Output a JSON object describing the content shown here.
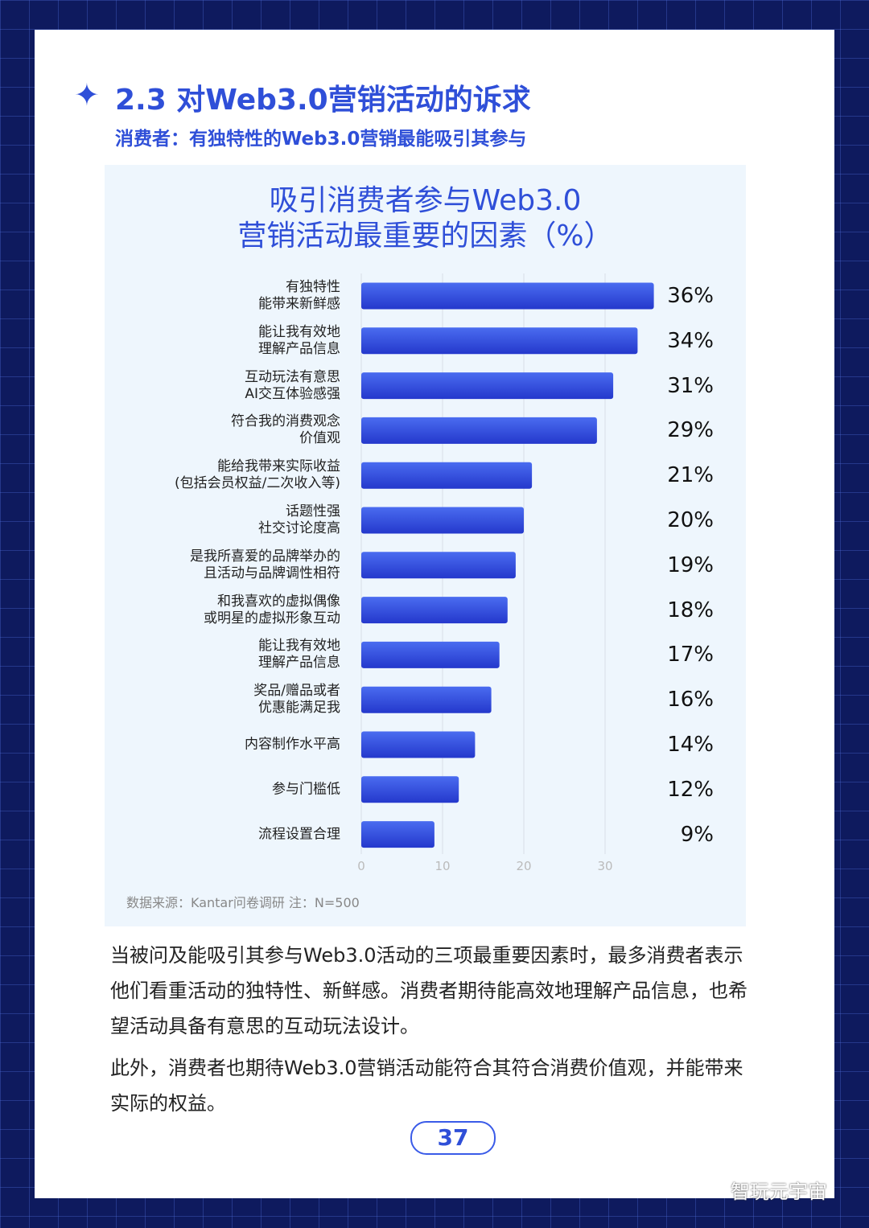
{
  "header": {
    "title": "2.3 对Web3.0营销活动的诉求",
    "subtitle": "消费者：有独特性的Web3.0营销最能吸引其参与"
  },
  "chart_data": {
    "type": "bar",
    "orientation": "horizontal",
    "title": "吸引消费者参与Web3.0\n营销活动最重要的因素（%）",
    "categories": [
      "有独特性\n能带来新鲜感",
      "能让我有效地\n理解产品信息",
      "互动玩法有意思\nAI交互体验感强",
      "符合我的消费观念\n价值观",
      "能给我带来实际收益\n(包括会员权益/二次收入等)",
      "话题性强\n社交讨论度高",
      "是我所喜爱的品牌举办的\n且活动与品牌调性相符",
      "和我喜欢的虚拟偶像\n或明星的虚拟形象互动",
      "能让我有效地\n理解产品信息",
      "奖品/赠品或者\n优惠能满足我",
      "内容制作水平高",
      "参与门槛低",
      "流程设置合理"
    ],
    "values": [
      36,
      34,
      31,
      29,
      21,
      20,
      19,
      18,
      17,
      16,
      14,
      12,
      9
    ],
    "value_labels": [
      "36%",
      "34%",
      "31%",
      "29%",
      "21%",
      "20%",
      "19%",
      "18%",
      "17%",
      "16%",
      "14%",
      "12%",
      "9%"
    ],
    "color": "#3253e2",
    "xlim": [
      0,
      40
    ],
    "xticks": [
      0,
      10,
      20,
      30
    ],
    "grid": true
  },
  "source": "数据来源：Kantar问卷调研 注：N=500",
  "body": [
    "当被问及能吸引其参与Web3.0活动的三项最重要因素时，最多消费者表示他们看重活动的独特性、新鲜感。消费者期待能高效地理解产品信息，也希望活动具备有意思的互动玩法设计。",
    "此外，消费者也期待Web3.0营销活动能符合其符合消费价值观，并能带来实际的权益。"
  ],
  "page_number": "37",
  "watermark": "智玩元宇宙"
}
